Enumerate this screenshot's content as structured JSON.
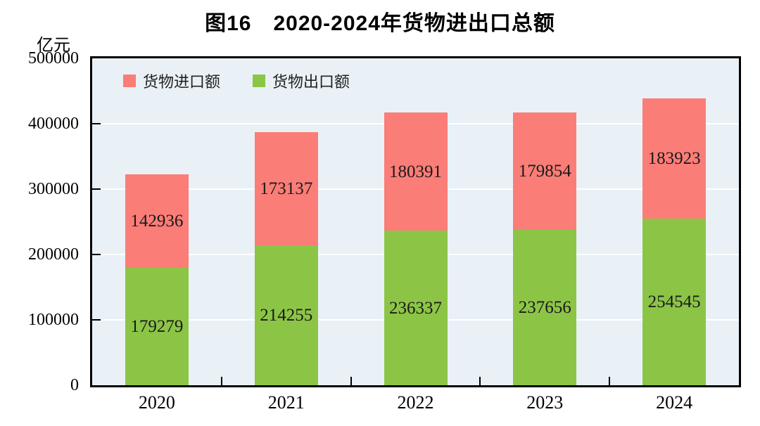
{
  "chart_data": {
    "type": "bar",
    "stacked": true,
    "title": "图16　2020-2024年货物进出口总额",
    "unit_label": "亿元",
    "categories": [
      "2020",
      "2021",
      "2022",
      "2023",
      "2024"
    ],
    "series": [
      {
        "name": "货物出口额",
        "color": "#8CC546",
        "values": [
          179279,
          214255,
          236337,
          237656,
          254545
        ]
      },
      {
        "name": "货物进口额",
        "color": "#FB7D77",
        "values": [
          142936,
          173137,
          180391,
          179854,
          183923
        ]
      }
    ],
    "legend": [
      {
        "label": "货物进口额",
        "color": "#FB7D77"
      },
      {
        "label": "货物出口额",
        "color": "#8CC546"
      }
    ],
    "ylim": [
      0,
      500000
    ],
    "ytick_step": 100000,
    "yticks": [
      "0",
      "100000",
      "200000",
      "300000",
      "400000",
      "500000"
    ],
    "xlabel": "",
    "ylabel": "亿元",
    "grid": true,
    "legend_position": "top-left-inside",
    "colors": {
      "plot_background": "#E9F1F6",
      "gridline": "#FFFFFF",
      "axis": "#000000",
      "data_label_text": "#1A1A1A",
      "title_text": "#000000"
    }
  }
}
